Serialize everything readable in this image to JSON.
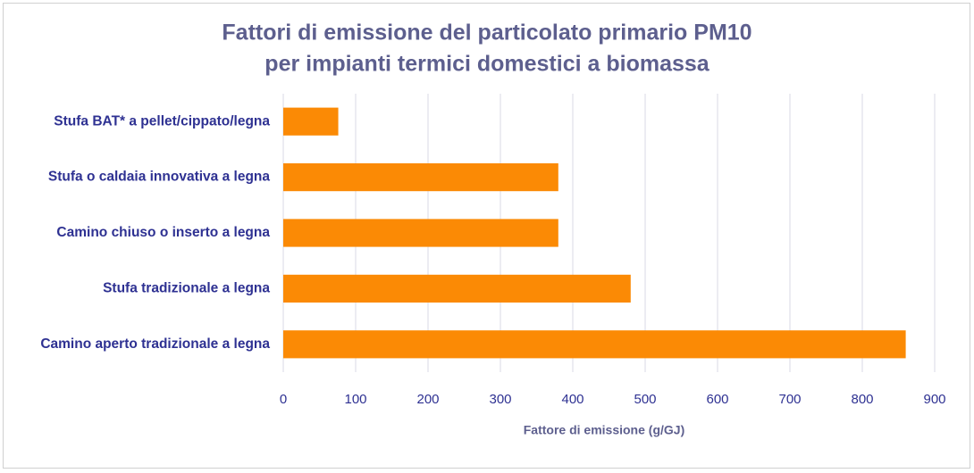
{
  "chart_data": {
    "type": "bar",
    "orientation": "horizontal",
    "title": [
      "Fattori di emissione del particolato primario PM10",
      "per impianti termici domestici a biomassa"
    ],
    "categories": [
      "Stufa BAT* a pellet/cippato/legna",
      "Stufa o caldaia innovativa a legna",
      "Camino chiuso o inserto a legna",
      "Stufa tradizionale a legna",
      "Camino aperto tradizionale a legna"
    ],
    "values": [
      76,
      380,
      380,
      480,
      860
    ],
    "color": "#fb8a05",
    "xlabel": "Fattore di emissione (g/GJ)",
    "xlim": [
      0,
      900
    ],
    "xticks": [
      0,
      100,
      200,
      300,
      400,
      500,
      600,
      700,
      800,
      900
    ],
    "grid": true
  }
}
